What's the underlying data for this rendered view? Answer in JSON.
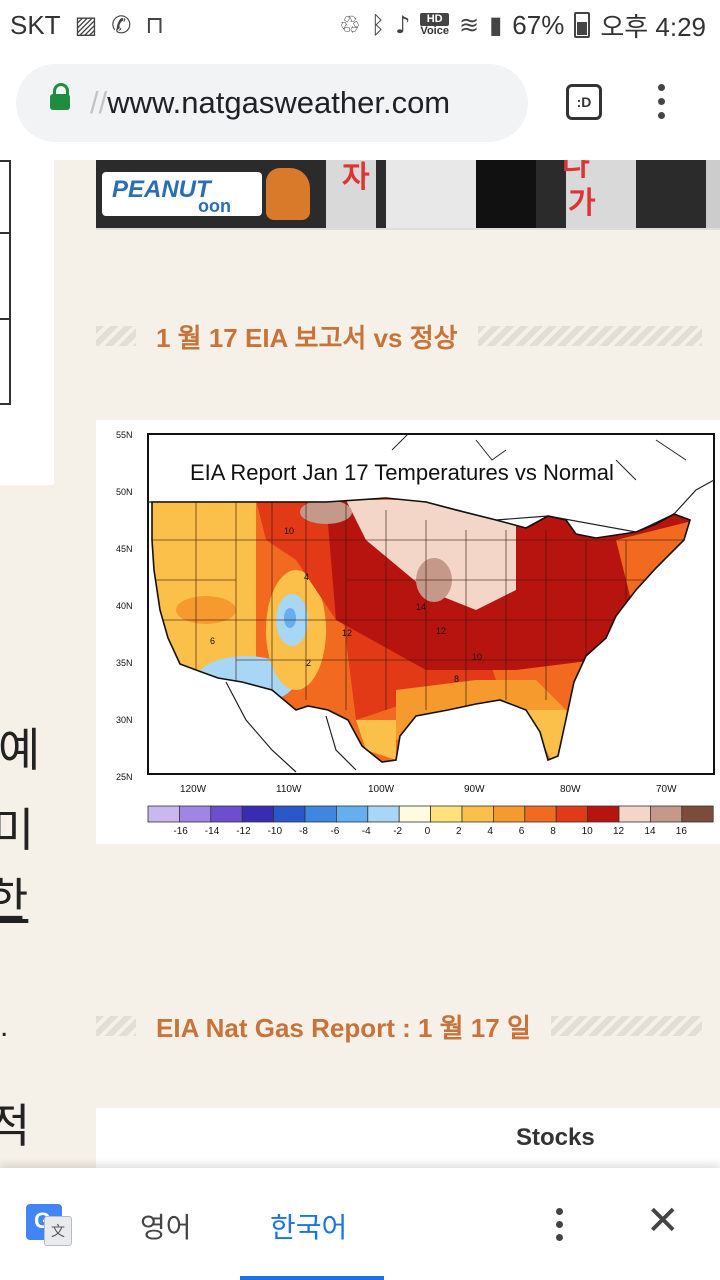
{
  "status_bar": {
    "carrier": "SKT",
    "battery": "67%",
    "time": "오후 4:29",
    "hd_label": "HD",
    "voice_label": "Voice"
  },
  "browser": {
    "url_faded": "//",
    "url_main": "www.natgasweather.com",
    "tab_switch_label": ":D"
  },
  "banner": {
    "logo_text": "PEANUT",
    "logo_sub": "oon",
    "char1": "자",
    "char2": "다",
    "char3": "가"
  },
  "left_column": {
    "chars": [
      "예",
      "미",
      "한",
      ".",
      "적"
    ]
  },
  "sections": [
    {
      "title": "1 월 17 EIA 보고서 vs 정상"
    },
    {
      "title": "EIA Nat Gas Report : 1 월 17 일"
    }
  ],
  "map": {
    "title": "EIA Report Jan 17 Temperatures vs Normal",
    "lat_labels": [
      "55N",
      "50N",
      "45N",
      "40N",
      "35N",
      "30N",
      "25N"
    ],
    "lon_labels": [
      "120W",
      "110W",
      "100W",
      "90W",
      "80W",
      "70W"
    ],
    "legend_labels": [
      "-16",
      "-14",
      "-12",
      "-10",
      "-8",
      "-6",
      "-4",
      "-2",
      "0",
      "2",
      "4",
      "6",
      "8",
      "10",
      "12",
      "14",
      "16"
    ],
    "legend_colors": [
      "#c9b7f0",
      "#9f86e6",
      "#6c4fd1",
      "#3a2bb3",
      "#2a57c9",
      "#3f86e0",
      "#66aef0",
      "#a8d6f5",
      "#fffbe0",
      "#ffe27a",
      "#fbc04a",
      "#f79a2e",
      "#f26a1f",
      "#e23a17",
      "#b8140f",
      "#f4d6c9",
      "#c59989",
      "#7d4b3c"
    ],
    "contour_labels": [
      "10",
      "4",
      "2",
      "14",
      "12",
      "12",
      "10",
      "8",
      "6"
    ]
  },
  "table_preview": {
    "header": "Stocks"
  },
  "translate_bar": {
    "source_lang": "영어",
    "target_lang": "한국어",
    "g_letter": "G",
    "g_sub": "文"
  }
}
